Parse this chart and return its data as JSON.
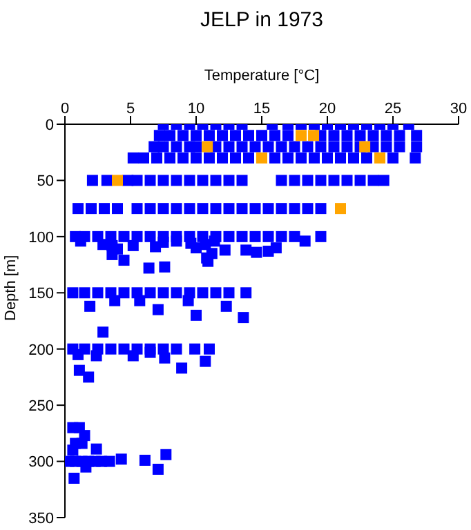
{
  "chart_data": {
    "type": "scatter",
    "title": "JELP in 1973",
    "xlabel": "Temperature [°C]",
    "ylabel": "Depth [m]",
    "xlim": [
      0,
      30
    ],
    "xticks": [
      0,
      5,
      10,
      15,
      20,
      25,
      30
    ],
    "ylim": [
      350,
      0
    ],
    "yticks": [
      0,
      50,
      100,
      150,
      200,
      250,
      300,
      350
    ],
    "marker": "square",
    "series": [
      {
        "color": "#0000ff",
        "x": [
          7.5,
          8.5,
          9.5,
          10.5,
          11.5,
          12.5,
          13.5,
          15.8,
          17,
          18,
          19,
          20,
          21,
          22,
          23,
          24,
          25,
          26.2,
          7.2,
          8,
          9,
          10,
          11,
          12,
          13,
          14,
          15,
          16,
          17,
          19.5,
          20.5,
          21.5,
          22.5,
          23.5,
          24.5,
          25.5,
          26.8,
          6.8,
          7.5,
          8.5,
          9.5,
          10,
          11.5,
          12.5,
          13.5,
          14.5,
          15.5,
          16.5,
          17.5,
          18.5,
          19.5,
          20.5,
          21.5,
          22.5,
          23.5,
          24.5,
          25.5,
          26.8,
          5.2,
          6,
          7,
          8,
          9,
          10,
          11,
          12,
          13,
          14,
          16,
          17,
          18,
          19,
          20,
          21,
          22,
          23,
          25,
          26.7,
          2.1,
          3.2,
          4.8,
          5.5,
          6.5,
          7.5,
          8.5,
          9.5,
          10.5,
          11.5,
          12.5,
          13.5,
          16.5,
          17.5,
          18.5,
          19.5,
          20.5,
          21.5,
          22.5,
          23.5,
          24.3,
          1,
          2,
          3,
          4,
          5.5,
          6.5,
          7.5,
          8.5,
          9.5,
          10.5,
          11.5,
          12.5,
          13.5,
          14.5,
          15.5,
          16.5,
          17.5,
          18.5,
          19.5,
          0.8,
          1.5,
          2.5,
          3.5,
          4.5,
          5.5,
          6.5,
          7.5,
          8.5,
          9.5,
          10.5,
          11.5,
          12.5,
          13.5,
          14.5,
          15.5,
          16.5,
          17.5,
          19.5,
          1.2,
          2.9,
          3.6,
          4,
          3.6,
          4.5,
          6.4,
          7.6,
          5.2,
          7.5,
          9.6,
          10,
          10.7,
          11.4,
          12.2,
          13.8,
          14.6,
          15.5,
          16.1,
          18.3,
          6.9,
          8.5,
          10.8,
          10.9,
          11.2,
          0.6,
          1.5,
          2.5,
          3.5,
          4.5,
          5.5,
          6.5,
          7.5,
          8.5,
          9.5,
          10.5,
          11.5,
          12.5,
          13.8,
          1.9,
          3.8,
          5.7,
          7.1,
          9.4,
          10,
          2.9,
          12.3,
          13.6,
          0.6,
          1.5,
          2.5,
          3.5,
          4.5,
          5.5,
          6.5,
          7.5,
          8.5,
          9.9,
          11,
          10.7,
          1.1,
          1.8,
          7.6,
          8.9,
          1,
          2.4,
          5.2,
          6.5,
          0.3,
          0.8,
          1.3,
          1.8,
          2.3,
          2.8,
          3.4,
          0.6,
          1.1,
          1.5,
          0.8,
          1.3,
          0.6,
          2.4,
          4.3,
          6.1,
          7.7,
          7.1,
          1.6,
          0.7
        ],
        "values": [
          0,
          0,
          0,
          0,
          0,
          0,
          0,
          0,
          0,
          0,
          0,
          0,
          0,
          0,
          0,
          0,
          0,
          0,
          10,
          10,
          10,
          10,
          10,
          10,
          10,
          10,
          10,
          10,
          10,
          10,
          10,
          10,
          10,
          10,
          10,
          10,
          10,
          20,
          20,
          20,
          20,
          20,
          20,
          20,
          20,
          20,
          20,
          20,
          20,
          20,
          20,
          20,
          20,
          20,
          20,
          20,
          20,
          20,
          30,
          30,
          30,
          30,
          30,
          30,
          30,
          30,
          30,
          30,
          30,
          30,
          30,
          30,
          30,
          30,
          30,
          30,
          30,
          30,
          50,
          50,
          50,
          50,
          50,
          50,
          50,
          50,
          50,
          50,
          50,
          50,
          50,
          50,
          50,
          50,
          50,
          50,
          50,
          50,
          50,
          75,
          75,
          75,
          75,
          75,
          75,
          75,
          75,
          75,
          75,
          75,
          75,
          75,
          75,
          75,
          75,
          75,
          75,
          75,
          100,
          100,
          100,
          100,
          100,
          100,
          100,
          100,
          100,
          100,
          100,
          100,
          100,
          100,
          100,
          100,
          100,
          100,
          100,
          104,
          107,
          108,
          111,
          116,
          121,
          128,
          127,
          108,
          105,
          106,
          110,
          107,
          104,
          112,
          112,
          114,
          113,
          110,
          104,
          109,
          104,
          119,
          122,
          115,
          150,
          150,
          150,
          150,
          150,
          150,
          150,
          150,
          150,
          150,
          150,
          150,
          150,
          150,
          162,
          157,
          157,
          165,
          157,
          170,
          185,
          162,
          172,
          200,
          200,
          200,
          200,
          200,
          200,
          200,
          200,
          200,
          200,
          200,
          211,
          219,
          225,
          208,
          217,
          205,
          206,
          206,
          203,
          300,
          300,
          300,
          300,
          300,
          300,
          300,
          270,
          270,
          277,
          284,
          284,
          290,
          289,
          298,
          299,
          294,
          307,
          305,
          315
        ]
      },
      {
        "color": "#ffa500",
        "x": [
          18,
          18.95,
          10.85,
          22.85,
          15,
          24,
          4,
          21
        ],
        "values": [
          10,
          10,
          20,
          20,
          30,
          30,
          50,
          75
        ]
      }
    ]
  }
}
